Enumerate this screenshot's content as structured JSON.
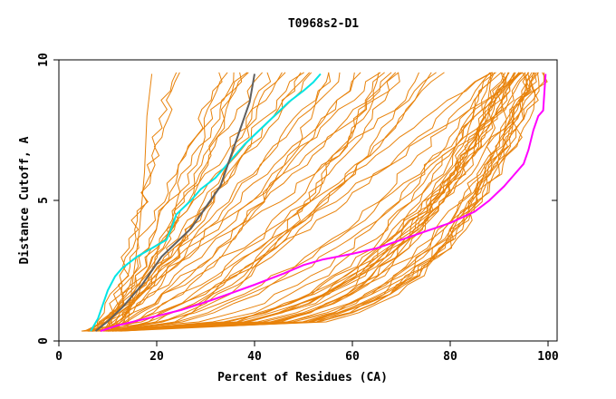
{
  "chart_data": {
    "type": "line",
    "title": "T0968s2-D1",
    "xlabel": "Percent of Residues (CA)",
    "ylabel": "Distance Cutoff, A",
    "xlim": [
      0,
      100
    ],
    "ylim": [
      0,
      10
    ],
    "x_ticks": [
      "0",
      "20",
      "40",
      "60",
      "80",
      "100"
    ],
    "y_ticks": [
      "0",
      "5",
      "10"
    ],
    "grid": false,
    "colors": {
      "background_series": "#e8820a",
      "magenta": "#ff00ff",
      "cyan": "#00e5e5",
      "gray": "#606060",
      "axis": "#000000"
    },
    "highlight_series": [
      {
        "name": "magenta",
        "points": [
          [
            8.5,
            0.35
          ],
          [
            12,
            0.55
          ],
          [
            18,
            0.8
          ],
          [
            25,
            1.1
          ],
          [
            32,
            1.5
          ],
          [
            40,
            2.0
          ],
          [
            46,
            2.4
          ],
          [
            50,
            2.7
          ],
          [
            54,
            2.9
          ],
          [
            60,
            3.1
          ],
          [
            65,
            3.3
          ],
          [
            70,
            3.6
          ],
          [
            75,
            3.9
          ],
          [
            80,
            4.2
          ],
          [
            85,
            4.6
          ],
          [
            88,
            5.0
          ],
          [
            91,
            5.5
          ],
          [
            93,
            5.9
          ],
          [
            95,
            6.3
          ],
          [
            96,
            6.8
          ],
          [
            97,
            7.5
          ],
          [
            98,
            8.0
          ],
          [
            99,
            8.2
          ],
          [
            99.5,
            9.5
          ]
        ]
      },
      {
        "name": "cyan",
        "points": [
          [
            6.5,
            0.35
          ],
          [
            8,
            0.8
          ],
          [
            9,
            1.3
          ],
          [
            10,
            1.8
          ],
          [
            11.5,
            2.3
          ],
          [
            13,
            2.6
          ],
          [
            16,
            3.0
          ],
          [
            19,
            3.3
          ],
          [
            22,
            3.6
          ],
          [
            23,
            4.0
          ],
          [
            24,
            4.5
          ],
          [
            27,
            5.0
          ],
          [
            29,
            5.4
          ],
          [
            32,
            5.8
          ],
          [
            35,
            6.4
          ],
          [
            38,
            7.0
          ],
          [
            41,
            7.5
          ],
          [
            44,
            8.0
          ],
          [
            47,
            8.5
          ],
          [
            50,
            8.9
          ],
          [
            52,
            9.2
          ],
          [
            53.5,
            9.5
          ]
        ]
      },
      {
        "name": "gray",
        "points": [
          [
            7.5,
            0.35
          ],
          [
            10,
            0.7
          ],
          [
            13,
            1.2
          ],
          [
            15,
            1.6
          ],
          [
            17,
            2.0
          ],
          [
            19,
            2.5
          ],
          [
            21,
            3.0
          ],
          [
            24,
            3.5
          ],
          [
            27,
            4.0
          ],
          [
            29,
            4.5
          ],
          [
            31,
            5.0
          ],
          [
            33,
            5.5
          ],
          [
            34,
            6.0
          ],
          [
            35,
            6.5
          ],
          [
            36,
            7.0
          ],
          [
            37,
            7.5
          ],
          [
            38,
            8.0
          ],
          [
            39,
            8.5
          ],
          [
            39.5,
            9.0
          ],
          [
            40,
            9.5
          ]
        ]
      }
    ],
    "background_series_count": 70
  }
}
